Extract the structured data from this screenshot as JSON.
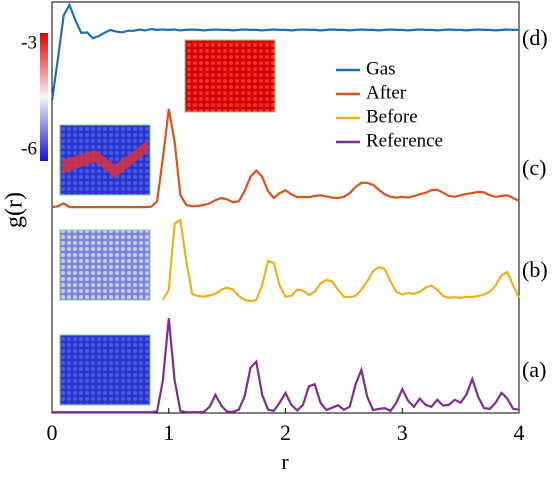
{
  "chart_data": {
    "type": "line",
    "x_label": "r",
    "y_label": "g(r)",
    "x": [
      0,
      0.05,
      0.1,
      0.15,
      0.2,
      0.25,
      0.3,
      0.35,
      0.4,
      0.45,
      0.5,
      0.55,
      0.6,
      0.65,
      0.7,
      0.75,
      0.8,
      0.85,
      0.9,
      0.95,
      1,
      1.05,
      1.1,
      1.15,
      1.2,
      1.25,
      1.3,
      1.35,
      1.4,
      1.45,
      1.5,
      1.55,
      1.6,
      1.65,
      1.7,
      1.75,
      1.8,
      1.85,
      1.9,
      1.95,
      2,
      2.05,
      2.1,
      2.15,
      2.2,
      2.25,
      2.3,
      2.35,
      2.4,
      2.45,
      2.5,
      2.55,
      2.6,
      2.65,
      2.7,
      2.75,
      2.8,
      2.85,
      2.9,
      2.95,
      3,
      3.05,
      3.1,
      3.15,
      3.2,
      3.25,
      3.3,
      3.35,
      3.4,
      3.45,
      3.5,
      3.55,
      3.6,
      3.65,
      3.7,
      3.75,
      3.8,
      3.85,
      3.9,
      3.95,
      4
    ],
    "xlim": [
      0,
      4
    ],
    "xticks": [
      0,
      1,
      2,
      3,
      4
    ],
    "ylim": [
      0,
      100
    ],
    "legend": "upper right",
    "series": [
      {
        "name": "Gas",
        "color": "#1f6fb8",
        "values": [
          76,
          86,
          96.8,
          99.3,
          95.6,
          92.5,
          92.6,
          91.2,
          91.7,
          92.5,
          93.2,
          92.8,
          92.6,
          93,
          93,
          93.3,
          93.1,
          93.4,
          93.2,
          93.3,
          93.2,
          93.3,
          93.1,
          93.2,
          93.3,
          93.2,
          93.1,
          93.2,
          93.3,
          93.2,
          93.2,
          93.1,
          93.2,
          93.3,
          93.2,
          93.2,
          93.1,
          93.2,
          93.3,
          93.2,
          93.2,
          93.1,
          93.2,
          93.3,
          93.2,
          93.2,
          93.1,
          93.2,
          93.3,
          93.2,
          93.2,
          93.1,
          93.2,
          93.3,
          93.2,
          93.2,
          93.1,
          93.2,
          93.3,
          93.2,
          93.2,
          93.1,
          93.2,
          93.3,
          93.2,
          93.2,
          93.1,
          93.2,
          93.3,
          93.2,
          93.2,
          93.1,
          93.2,
          93.3,
          93.2,
          93.2,
          93.1,
          93.2,
          93.3,
          93.2,
          93.2
        ]
      },
      {
        "name": "After",
        "color": "#d9531e",
        "values": [
          50.1,
          50.3,
          51,
          50.1,
          50.1,
          50.1,
          50.1,
          50.1,
          50.1,
          50.1,
          50.1,
          50.1,
          50.1,
          50.1,
          50.1,
          50.1,
          50.1,
          50.2,
          51.5,
          62,
          74,
          66,
          53,
          50.6,
          50.3,
          50.4,
          50.6,
          51,
          51.8,
          52.3,
          52,
          51.3,
          51.5,
          54,
          57.5,
          59,
          57.5,
          54,
          52.3,
          53.5,
          54.2,
          53.2,
          52.5,
          52.6,
          52.5,
          52.8,
          53,
          52.7,
          52.4,
          52.3,
          52.6,
          53.5,
          55,
          56,
          56,
          55.5,
          54.3,
          53.2,
          52.6,
          52.4,
          52.6,
          52.4,
          52.8,
          53.2,
          53.6,
          54.2,
          54.3,
          53.6,
          52.8,
          52.6,
          53,
          53.3,
          53.5,
          53.8,
          53.7,
          53,
          52.6,
          52.8,
          53,
          52.3,
          51.6
        ]
      },
      {
        "name": "Before",
        "color": "#edb120",
        "values": [
          null,
          null,
          null,
          null,
          null,
          null,
          null,
          null,
          null,
          null,
          null,
          null,
          null,
          null,
          null,
          null,
          null,
          null,
          null,
          27.5,
          30,
          46,
          47,
          37,
          29,
          28.5,
          28.3,
          28.6,
          29,
          30,
          30.5,
          30,
          28.5,
          27.5,
          27.2,
          27.5,
          31,
          37,
          36.5,
          31,
          28.3,
          28.5,
          30,
          29.8,
          28.7,
          29.5,
          31.5,
          32.4,
          32,
          30,
          28.3,
          28.2,
          28.5,
          30,
          32,
          34.5,
          35.5,
          35,
          32,
          29.5,
          28.8,
          29.2,
          29,
          29.5,
          30.5,
          31,
          30,
          28.5,
          28,
          28.2,
          28,
          28.3,
          28.2,
          28.5,
          28.8,
          29.5,
          31,
          33.5,
          34.3,
          31,
          28
        ]
      },
      {
        "name": "Reference",
        "color": "#7e2f8e",
        "values": [
          0.2,
          0.2,
          0.2,
          0.2,
          0.2,
          0.2,
          0.2,
          0.2,
          0.2,
          0.2,
          0.2,
          0.2,
          0.2,
          0.2,
          0.2,
          0.2,
          0.2,
          0.2,
          0.4,
          8,
          23.1,
          8,
          0.5,
          0.2,
          0.2,
          0.2,
          0.3,
          1.5,
          4.4,
          1.8,
          0.3,
          0.3,
          0.8,
          4,
          11,
          12.5,
          4.5,
          0.8,
          0.5,
          2.5,
          4.9,
          2,
          0.6,
          2,
          6.5,
          7,
          2.5,
          0.7,
          1.3,
          1.9,
          0.8,
          1.5,
          7,
          10.5,
          4,
          0.7,
          1,
          1.2,
          0.5,
          2.5,
          5.8,
          3,
          1.5,
          3.5,
          2,
          1.5,
          3.2,
          1.8,
          2,
          3.2,
          2.5,
          4.5,
          8.3,
          4,
          1.2,
          1,
          2.5,
          4.9,
          3.5,
          1,
          0.8
        ]
      }
    ],
    "annotations": [
      "(d)",
      "(c)",
      "(b)",
      "(a)"
    ],
    "colorbar": {
      "ticks": [
        -3,
        -6
      ]
    }
  }
}
